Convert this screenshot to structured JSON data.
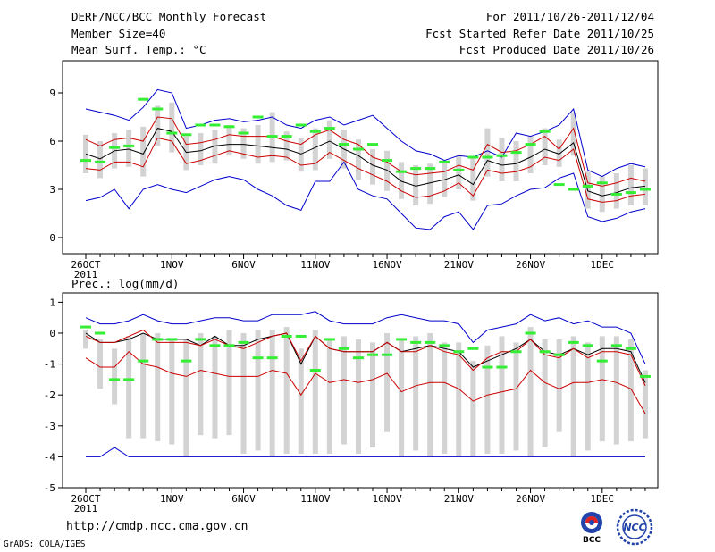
{
  "header": {
    "title": "DERF/NCC/BCC Monthly Forecast",
    "member_size": "Member Size=40",
    "variable": "Mean Surf. Temp.: °C",
    "period": "For 2011/10/26-2011/12/04",
    "refer_date": "Fcst Started Refer Date 2011/10/25",
    "produced_date": "Fcst Produced Date 2011/10/26"
  },
  "footer": {
    "url": "http://cmdp.ncc.cma.gov.cn",
    "grads_credit": "GrADS: COLA/IGES",
    "logo_bcc_text": "BCC",
    "logo_ncc_text": "NCC"
  },
  "colors": {
    "ensemble_mean": "#000000",
    "member_spread": "#cc0000",
    "extremes": "#0000cc",
    "climatology": "#33ee33",
    "box": "#d3d3d3"
  },
  "chart_data": [
    {
      "type": "line",
      "title": "Mean Surf. Temp.: °C",
      "x_tick_labels": [
        "26OCT",
        "1NOV",
        "6NOV",
        "11NOV",
        "16NOV",
        "21NOV",
        "26NOV",
        "1DEC"
      ],
      "x_tick_days": [
        0,
        6,
        11,
        16,
        21,
        26,
        31,
        36
      ],
      "x_year_label": "2011",
      "ylim": [
        -1,
        11
      ],
      "y_ticks": [
        0,
        3,
        6,
        9
      ],
      "days": [
        0,
        1,
        2,
        3,
        4,
        5,
        6,
        7,
        8,
        9,
        10,
        11,
        12,
        13,
        14,
        15,
        16,
        17,
        18,
        19,
        20,
        21,
        22,
        23,
        24,
        25,
        26,
        27,
        28,
        29,
        30,
        31,
        32,
        33,
        34,
        35,
        36,
        37,
        38,
        39
      ],
      "series": [
        {
          "name": "max",
          "color": "#0000cc",
          "values": [
            8.0,
            7.8,
            7.6,
            7.3,
            8.1,
            9.2,
            9.0,
            6.8,
            7.0,
            7.3,
            7.4,
            7.2,
            7.3,
            7.5,
            7.0,
            6.8,
            7.3,
            7.5,
            7.0,
            7.3,
            7.6,
            6.8,
            6.0,
            5.4,
            5.2,
            4.8,
            5.1,
            5.0,
            5.4,
            5.0,
            6.5,
            6.3,
            6.6,
            7.0,
            8.0,
            4.2,
            3.8,
            4.3,
            4.6,
            4.4
          ]
        },
        {
          "name": "upper_spread",
          "color": "#cc0000",
          "values": [
            6.1,
            5.7,
            6.1,
            6.2,
            6.0,
            7.5,
            7.4,
            5.8,
            5.9,
            6.1,
            6.4,
            6.3,
            6.3,
            6.3,
            6.0,
            5.8,
            6.4,
            6.7,
            6.1,
            5.8,
            5.0,
            4.7,
            4.1,
            3.9,
            4.0,
            4.1,
            4.5,
            4.2,
            5.8,
            5.3,
            5.4,
            5.8,
            6.3,
            5.5,
            6.8,
            3.4,
            3.2,
            3.4,
            3.7,
            3.5
          ]
        },
        {
          "name": "mean",
          "color": "#000000",
          "values": [
            5.2,
            4.9,
            5.4,
            5.5,
            5.2,
            6.8,
            6.6,
            5.3,
            5.4,
            5.7,
            5.8,
            5.8,
            5.7,
            5.6,
            5.5,
            5.2,
            5.6,
            6.0,
            5.5,
            5.1,
            4.5,
            4.2,
            3.5,
            3.2,
            3.4,
            3.6,
            3.9,
            3.3,
            4.8,
            4.5,
            4.6,
            5.0,
            5.5,
            5.2,
            5.9,
            2.9,
            2.6,
            2.8,
            3.1,
            3.2
          ]
        },
        {
          "name": "lower_spread",
          "color": "#cc0000",
          "values": [
            4.3,
            4.2,
            4.7,
            4.7,
            4.4,
            6.2,
            6.0,
            4.6,
            4.8,
            5.1,
            5.4,
            5.2,
            5.0,
            5.1,
            5.0,
            4.5,
            4.6,
            5.3,
            4.8,
            4.3,
            3.9,
            3.5,
            2.9,
            2.5,
            2.6,
            2.9,
            3.4,
            2.6,
            4.2,
            4.0,
            4.1,
            4.4,
            5.0,
            4.8,
            5.5,
            2.4,
            2.2,
            2.3,
            2.6,
            2.7
          ]
        },
        {
          "name": "min",
          "color": "#0000cc",
          "values": [
            2.3,
            2.5,
            3.0,
            1.8,
            3.0,
            3.3,
            3.0,
            2.8,
            3.2,
            3.6,
            3.8,
            3.6,
            3.0,
            2.6,
            2.0,
            1.7,
            3.5,
            3.5,
            4.7,
            3.0,
            2.6,
            2.4,
            1.5,
            0.6,
            0.5,
            1.3,
            1.6,
            0.5,
            2.0,
            2.1,
            2.6,
            3.0,
            3.1,
            3.7,
            4.0,
            1.3,
            1.0,
            1.2,
            1.6,
            1.8
          ]
        }
      ],
      "climatology": [
        4.8,
        4.7,
        5.6,
        5.7,
        8.6,
        8.0,
        6.5,
        6.4,
        7.0,
        7.0,
        6.9,
        6.5,
        7.5,
        6.3,
        6.3,
        7.0,
        6.6,
        6.8,
        5.8,
        5.5,
        5.8,
        4.8,
        4.1,
        4.3,
        4.3,
        4.7,
        4.2,
        5.0,
        5.0,
        5.1,
        5.3,
        5.8,
        6.6,
        3.3,
        3.0,
        3.2,
        3.4,
        2.7,
        2.8,
        3.0
      ],
      "box_bottom": [
        4.0,
        3.7,
        4.3,
        4.4,
        3.8,
        5.7,
        5.3,
        4.2,
        4.5,
        4.6,
        5.1,
        4.9,
        4.6,
        4.7,
        4.8,
        4.1,
        4.2,
        4.9,
        4.3,
        3.6,
        3.3,
        2.9,
        2.4,
        2.0,
        2.1,
        2.5,
        3.0,
        2.3,
        3.8,
        3.5,
        3.5,
        4.0,
        4.5,
        4.4,
        5.1,
        1.8,
        1.6,
        1.8,
        2.0,
        2.0
      ],
      "box_top": [
        6.4,
        6.0,
        6.5,
        6.7,
        6.9,
        8.2,
        8.4,
        6.3,
        6.5,
        6.7,
        7.0,
        6.8,
        7.0,
        7.8,
        6.6,
        6.2,
        6.8,
        7.3,
        6.7,
        6.1,
        5.5,
        5.4,
        4.7,
        4.5,
        4.6,
        4.7,
        5.1,
        5.0,
        6.8,
        6.2,
        6.0,
        6.3,
        6.8,
        6.1,
        7.8,
        4.1,
        3.8,
        4.0,
        4.5,
        4.3
      ]
    },
    {
      "type": "line",
      "title": "Prec.: log(mm/d)",
      "x_tick_labels": [
        "26OCT",
        "1NOV",
        "6NOV",
        "11NOV",
        "16NOV",
        "21NOV",
        "26NOV",
        "1DEC"
      ],
      "x_tick_days": [
        0,
        6,
        11,
        16,
        21,
        26,
        31,
        36
      ],
      "x_year_label": "2011",
      "ylim": [
        -5,
        1.3
      ],
      "y_ticks": [
        -5,
        -4,
        -3,
        -2,
        -1,
        0,
        1
      ],
      "days": [
        0,
        1,
        2,
        3,
        4,
        5,
        6,
        7,
        8,
        9,
        10,
        11,
        12,
        13,
        14,
        15,
        16,
        17,
        18,
        19,
        20,
        21,
        22,
        23,
        24,
        25,
        26,
        27,
        28,
        29,
        30,
        31,
        32,
        33,
        34,
        35,
        36,
        37,
        38,
        39
      ],
      "series": [
        {
          "name": "max",
          "color": "#0000cc",
          "values": [
            0.5,
            0.3,
            0.3,
            0.4,
            0.6,
            0.4,
            0.3,
            0.3,
            0.4,
            0.5,
            0.5,
            0.4,
            0.4,
            0.6,
            0.6,
            0.6,
            0.7,
            0.4,
            0.3,
            0.3,
            0.3,
            0.5,
            0.6,
            0.5,
            0.4,
            0.4,
            0.3,
            -0.3,
            0.1,
            0.2,
            0.3,
            0.6,
            0.4,
            0.5,
            0.3,
            0.4,
            0.2,
            0.2,
            0.0,
            -1.0
          ]
        },
        {
          "name": "mean",
          "color": "#000000",
          "values": [
            0.0,
            -0.3,
            -0.3,
            -0.2,
            0.0,
            -0.2,
            -0.2,
            -0.2,
            -0.4,
            -0.1,
            -0.4,
            -0.4,
            -0.2,
            -0.1,
            0.0,
            -1.0,
            -0.1,
            -0.5,
            -0.6,
            -0.6,
            -0.6,
            -0.3,
            -0.6,
            -0.5,
            -0.4,
            -0.5,
            -0.6,
            -1.1,
            -0.9,
            -0.7,
            -0.5,
            -0.2,
            -0.6,
            -0.7,
            -0.5,
            -0.7,
            -0.5,
            -0.5,
            -0.6,
            -1.6
          ]
        },
        {
          "name": "upper_spread",
          "color": "#cc0000",
          "values": [
            -0.1,
            -0.3,
            -0.3,
            -0.1,
            0.1,
            -0.3,
            -0.3,
            -0.3,
            -0.4,
            -0.2,
            -0.4,
            -0.5,
            -0.3,
            -0.1,
            0.0,
            -0.9,
            -0.1,
            -0.5,
            -0.6,
            -0.6,
            -0.6,
            -0.3,
            -0.6,
            -0.6,
            -0.4,
            -0.6,
            -0.7,
            -1.2,
            -0.8,
            -0.6,
            -0.6,
            -0.2,
            -0.7,
            -0.8,
            -0.5,
            -0.8,
            -0.6,
            -0.6,
            -0.7,
            -1.7
          ]
        },
        {
          "name": "lower_spread",
          "color": "#cc0000",
          "values": [
            -0.8,
            -1.1,
            -1.1,
            -0.6,
            -1.0,
            -1.1,
            -1.3,
            -1.4,
            -1.2,
            -1.3,
            -1.4,
            -1.4,
            -1.4,
            -1.2,
            -1.3,
            -2.0,
            -1.3,
            -1.6,
            -1.5,
            -1.6,
            -1.5,
            -1.3,
            -1.9,
            -1.7,
            -1.6,
            -1.6,
            -1.8,
            -2.2,
            -2.0,
            -1.9,
            -1.8,
            -1.2,
            -1.6,
            -1.8,
            -1.6,
            -1.6,
            -1.5,
            -1.6,
            -1.8,
            -2.6
          ]
        },
        {
          "name": "min",
          "color": "#0000cc",
          "values": [
            -4.0,
            -4.0,
            -3.7,
            -4.0,
            -4.0,
            -4.0,
            -4.0,
            -4.0,
            -4.0,
            -4.0,
            -4.0,
            -4.0,
            -4.0,
            -4.0,
            -4.0,
            -4.0,
            -4.0,
            -4.0,
            -4.0,
            -4.0,
            -4.0,
            -4.0,
            -4.0,
            -4.0,
            -4.0,
            -4.0,
            -4.0,
            -4.0,
            -4.0,
            -4.0,
            -4.0,
            -4.0,
            -4.0,
            -4.0,
            -4.0,
            -4.0,
            -4.0,
            -4.0,
            -4.0,
            -4.0
          ]
        }
      ],
      "climatology": [
        0.2,
        0.0,
        -1.5,
        -1.5,
        -0.9,
        -0.2,
        -0.2,
        -0.9,
        -0.2,
        -0.4,
        -0.4,
        -0.3,
        -0.8,
        -0.8,
        -0.1,
        -0.1,
        -1.2,
        -0.2,
        -0.5,
        -0.8,
        -0.7,
        -0.7,
        -0.2,
        -0.3,
        -0.3,
        -0.4,
        -0.6,
        -0.5,
        -1.1,
        -1.1,
        -0.6,
        0.0,
        -0.6,
        -0.7,
        -0.3,
        -0.4,
        -0.9,
        -0.4,
        -0.5,
        -1.4
      ],
      "box_bottom": [
        -0.5,
        -1.8,
        -2.3,
        -3.4,
        -3.4,
        -3.5,
        -3.6,
        -4.0,
        -3.3,
        -3.4,
        -3.3,
        -3.9,
        -3.8,
        -4.0,
        -3.9,
        -3.9,
        -3.9,
        -3.9,
        -3.6,
        -3.9,
        -3.7,
        -3.2,
        -4.0,
        -3.8,
        -4.0,
        -3.9,
        -4.0,
        -4.0,
        -3.9,
        -3.9,
        -3.8,
        -4.0,
        -3.7,
        -3.2,
        -4.0,
        -3.8,
        -3.5,
        -3.6,
        -3.5,
        -3.4
      ],
      "box_top": [
        0.1,
        -0.2,
        -0.5,
        -0.1,
        0.0,
        0.0,
        -0.2,
        -0.2,
        0.0,
        -0.1,
        0.1,
        0.0,
        0.1,
        0.1,
        0.2,
        -0.5,
        0.1,
        -0.2,
        -0.1,
        -0.2,
        -0.3,
        0.0,
        -0.2,
        -0.1,
        0.0,
        -0.3,
        -0.3,
        -0.9,
        -0.4,
        -0.1,
        -0.3,
        0.2,
        -0.2,
        -0.2,
        -0.1,
        -0.3,
        -0.1,
        -0.1,
        -0.2,
        -1.2
      ]
    }
  ]
}
